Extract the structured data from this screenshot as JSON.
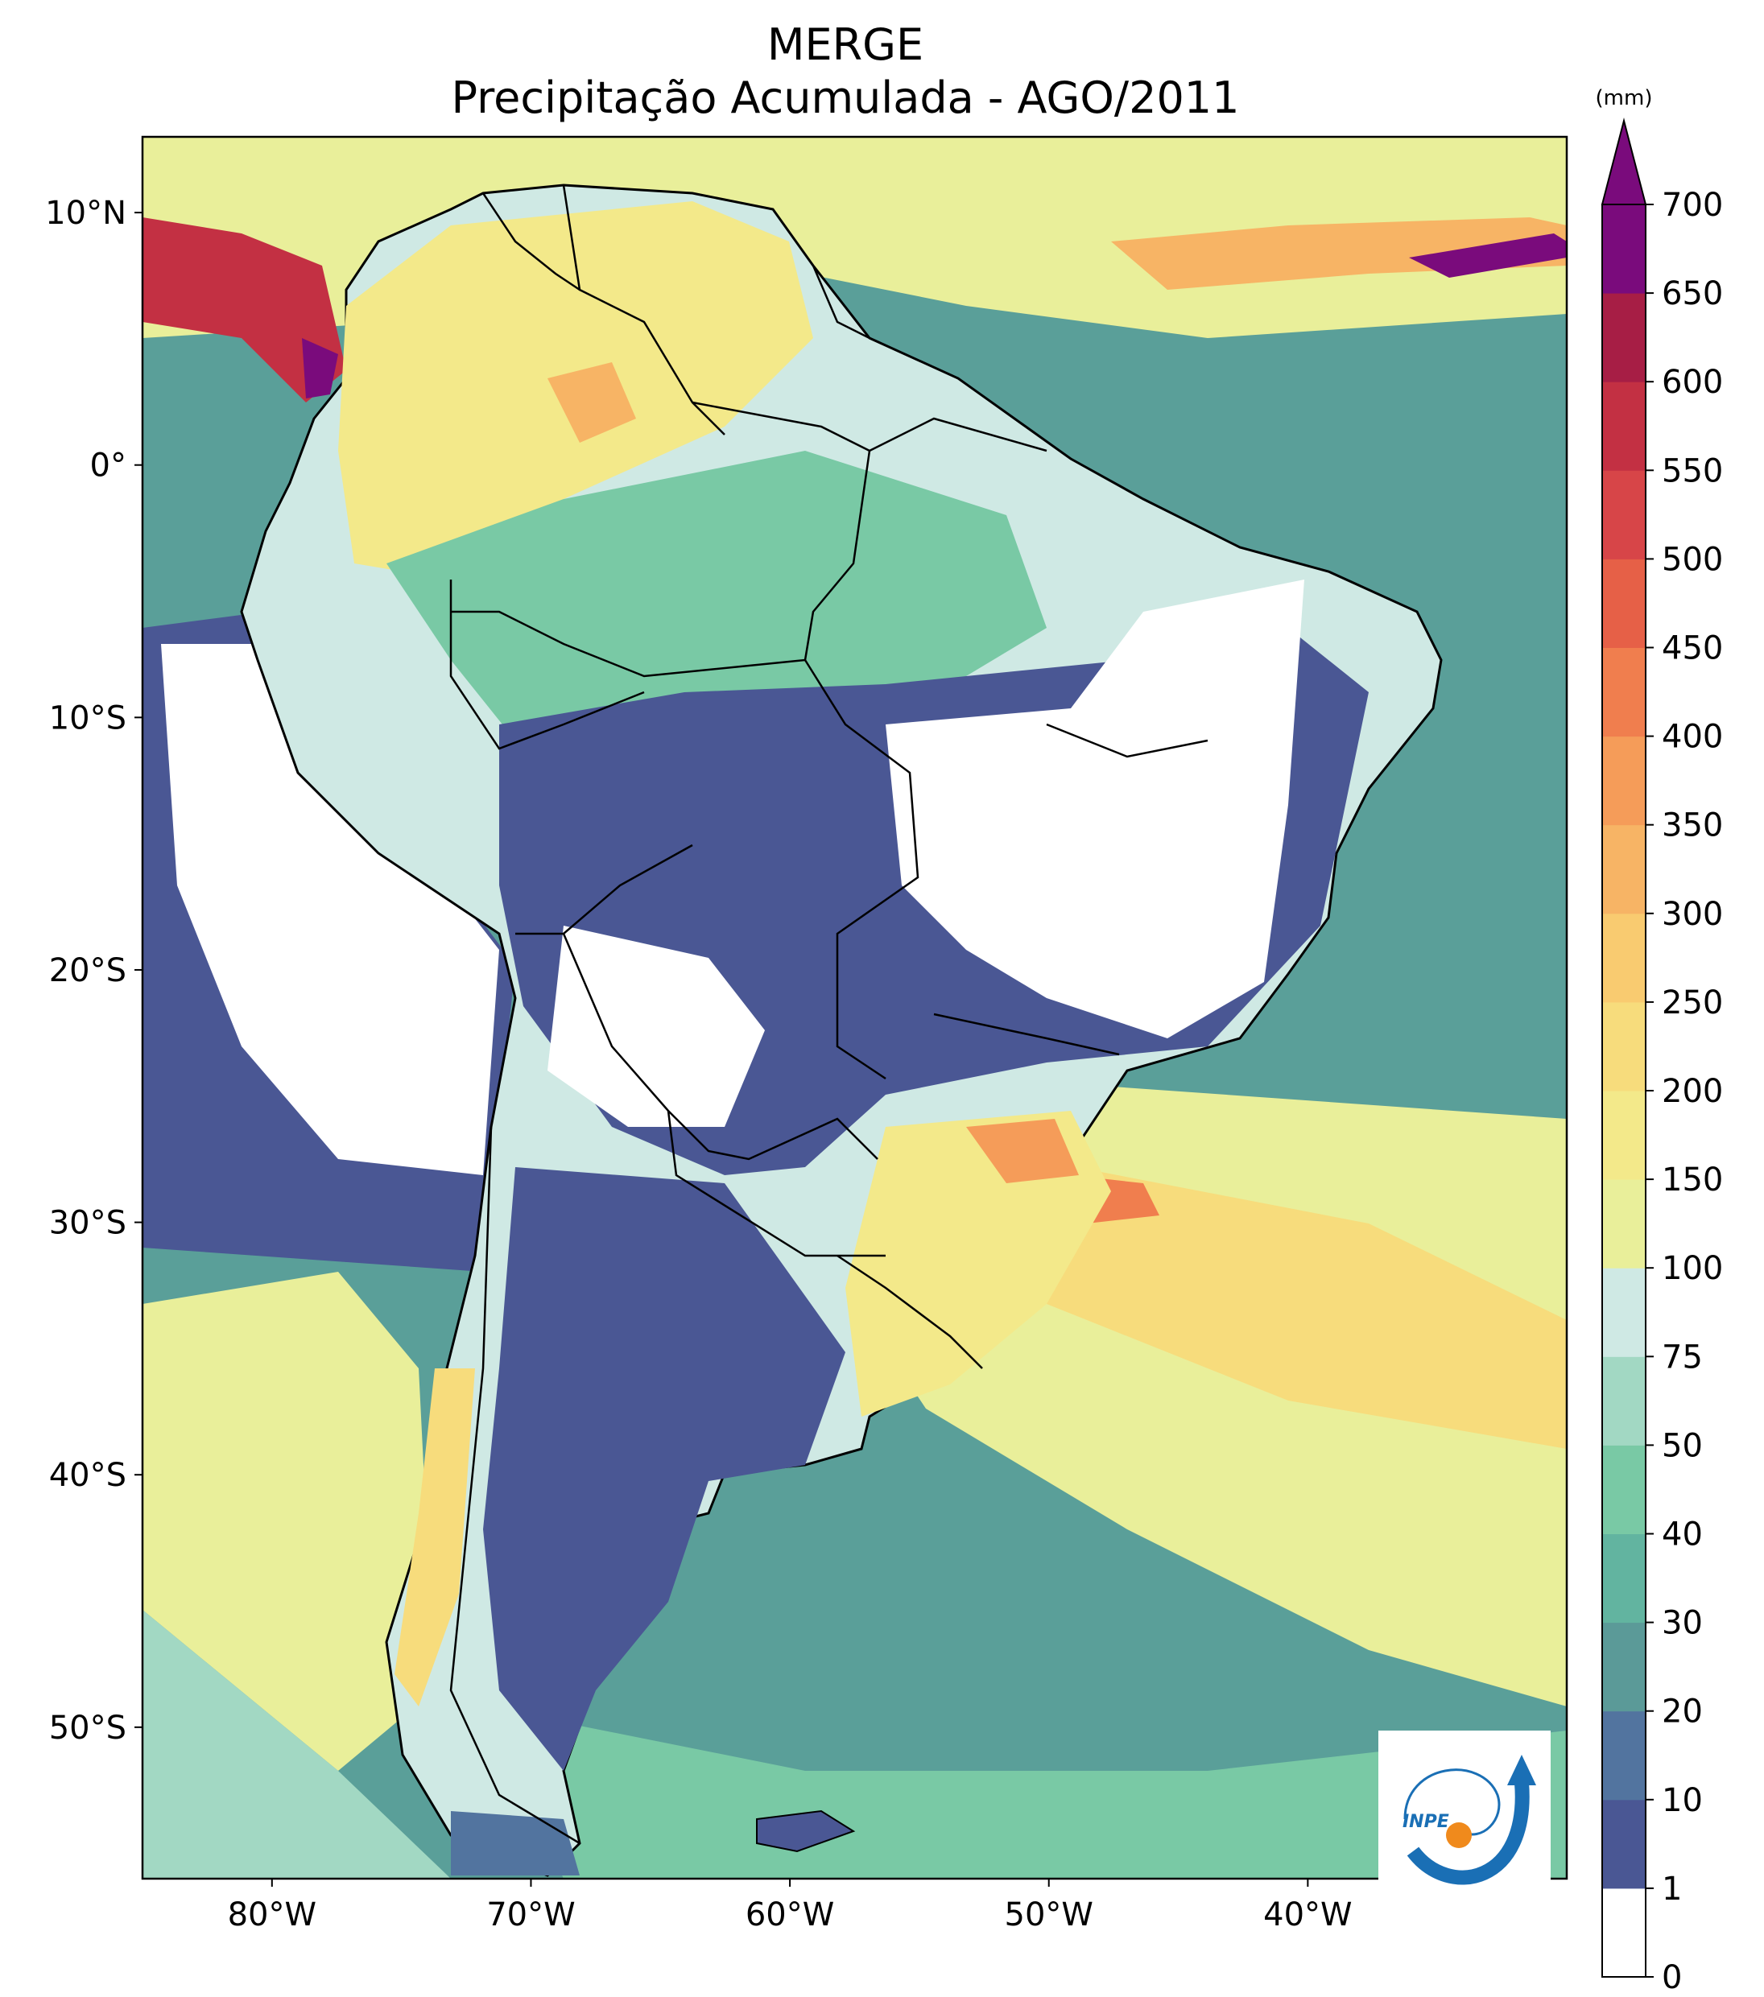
{
  "header": {
    "title": "MERGE",
    "subtitle": "Precipitação Acumulada - AGO/2011"
  },
  "map": {
    "lon_range": [
      -85,
      -30
    ],
    "lat_range": [
      -56,
      13
    ],
    "lat_ticks": [
      {
        "value": 10,
        "label": "10°N"
      },
      {
        "value": 0,
        "label": "0°"
      },
      {
        "value": -10,
        "label": "10°S"
      },
      {
        "value": -20,
        "label": "20°S"
      },
      {
        "value": -30,
        "label": "30°S"
      },
      {
        "value": -40,
        "label": "40°S"
      },
      {
        "value": -50,
        "label": "50°S"
      }
    ],
    "lon_ticks": [
      {
        "value": -80,
        "label": "80°W"
      },
      {
        "value": -70,
        "label": "70°W"
      },
      {
        "value": -60,
        "label": "60°W"
      },
      {
        "value": -50,
        "label": "50°W"
      },
      {
        "value": -40,
        "label": "40°W"
      }
    ],
    "ocean_color": "#5a9f99",
    "coast_color": "#000000"
  },
  "colorbar": {
    "unit": "(mm)",
    "levels": [
      "0",
      "1",
      "10",
      "20",
      "30",
      "40",
      "50",
      "75",
      "100",
      "150",
      "200",
      "250",
      "300",
      "350",
      "400",
      "450",
      "500",
      "550",
      "600",
      "650",
      "700"
    ],
    "colors": [
      "#ffffff",
      "#4a5794",
      "#52749f",
      "#5b9a98",
      "#62b4a0",
      "#79c9a5",
      "#a2d8c3",
      "#cfe9e4",
      "#e9ef9a",
      "#f3e98a",
      "#f7dc7c",
      "#f9cb70",
      "#f7b465",
      "#f59c59",
      "#f07e4e",
      "#e66047",
      "#d74548",
      "#c33043",
      "#a71e45",
      "#7a0b7c"
    ],
    "extend_color": "#7a0b7c"
  },
  "logo": {
    "text": "INPE",
    "orbit_color": "#1a6fb5",
    "dot_color": "#f08a1c"
  }
}
